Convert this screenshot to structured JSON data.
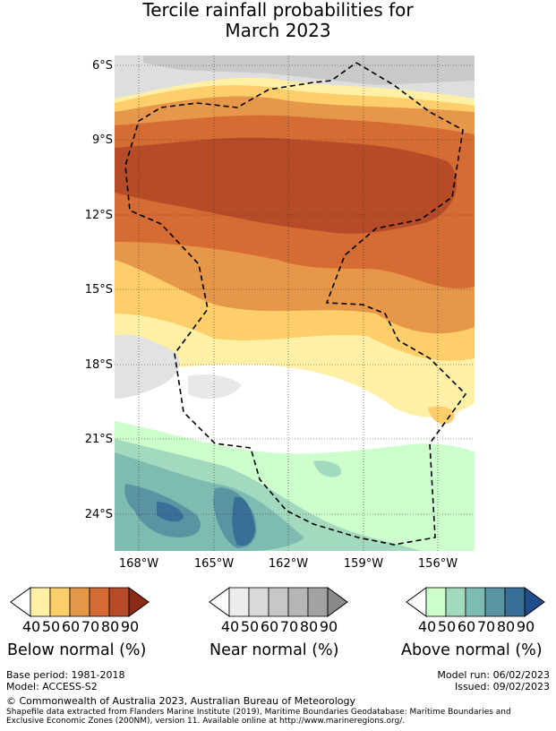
{
  "title_line1": "Tercile rainfall probabilities for",
  "title_line2": "March 2023",
  "map": {
    "lat_labels": [
      "6°S",
      "9°S",
      "12°S",
      "15°S",
      "18°S",
      "21°S",
      "24°S"
    ],
    "lon_labels": [
      "168°W",
      "165°W",
      "162°W",
      "159°W",
      "156°W"
    ],
    "grid": true,
    "boundary": "dashed-eez"
  },
  "colorbars": [
    {
      "name": "below",
      "title": "Below normal (%)",
      "ticks": [
        "40",
        "50",
        "60",
        "70",
        "80",
        "90"
      ],
      "colors": [
        "#fff0a6",
        "#fece6a",
        "#e6974a",
        "#d56c33",
        "#b64b28",
        "#8c2a18"
      ]
    },
    {
      "name": "near",
      "title": "Near normal (%)",
      "ticks": [
        "40",
        "50",
        "60",
        "70",
        "80",
        "90"
      ],
      "colors": [
        "#ececec",
        "#dadada",
        "#c7c7c7",
        "#b5b5b5",
        "#a2a2a2",
        "#8a8a8a"
      ]
    },
    {
      "name": "above",
      "title": "Above normal (%)",
      "ticks": [
        "40",
        "50",
        "60",
        "70",
        "80",
        "90"
      ],
      "colors": [
        "#ccffcc",
        "#a3d9bf",
        "#7ebbb1",
        "#5a94a2",
        "#396f97",
        "#1f4d8a"
      ]
    }
  ],
  "footer": {
    "base_period": "Base period: 1981-2018",
    "model": "Model: ACCESS-S2",
    "model_run": "Model run: 06/02/2023",
    "issued": "Issued: 09/02/2023",
    "copyright": "© Commonwealth of Australia 2023, Australian Bureau of Meteorology",
    "shapefile_line1": "Shapefile data extracted from Flanders Marine Institute (2019), Maritime Boundaries Geodatabase: Maritime Boundaries and",
    "shapefile_line2": "Exclusive Economic Zones (200NM), version 11. Available online at http://www.marineregions.org/."
  }
}
